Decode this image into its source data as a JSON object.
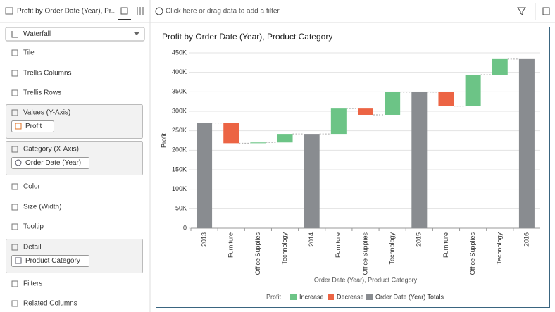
{
  "tab_title": "Profit by Order Date (Year), Pr...",
  "filter_placeholder": "Click here or drag data to add a filter",
  "sidebar": {
    "chart_type": "Waterfall",
    "sections": [
      {
        "label": "Tile"
      },
      {
        "label": "Trellis Columns"
      },
      {
        "label": "Trellis Rows"
      },
      {
        "label": "Values (Y-Axis)",
        "pill": "Profit"
      },
      {
        "label": "Category (X-Axis)",
        "pill": "Order Date (Year)"
      },
      {
        "label": "Color"
      },
      {
        "label": "Size (Width)"
      },
      {
        "label": "Tooltip"
      },
      {
        "label": "Detail",
        "pill": "Product Category"
      },
      {
        "label": "Filters"
      },
      {
        "label": "Related Columns"
      }
    ]
  },
  "chart_data": {
    "type": "waterfall",
    "title": "Profit by Order Date (Year), Product Category",
    "y_label": "Profit",
    "x_label": "Order Date (Year), Product Category",
    "categories": [
      "2013",
      "Furniture",
      "Office Supplies",
      "Technology",
      "2014",
      "Furniture",
      "Office Supplies",
      "Technology",
      "2015",
      "Furniture",
      "Office Supplies",
      "Technology",
      "2016"
    ],
    "values": [
      270000,
      -52000,
      2000,
      22000,
      242000,
      65000,
      -16000,
      58000,
      349000,
      -36000,
      81000,
      40000,
      434000
    ],
    "is_total": [
      true,
      false,
      false,
      false,
      true,
      false,
      false,
      false,
      true,
      false,
      false,
      false,
      true
    ],
    "ylim": [
      0,
      450000
    ],
    "yticks": [
      0,
      {
        "value": 50000,
        "label": "50K"
      },
      {
        "value": 100000,
        "label": "100K"
      },
      {
        "value": 150000,
        "label": "150K"
      },
      {
        "value": 200000,
        "label": "200K"
      },
      {
        "value": 250000,
        "label": "250K"
      },
      {
        "value": 300000,
        "label": "300K"
      },
      {
        "value": 350000,
        "label": "350K"
      },
      {
        "value": 400000,
        "label": "400K"
      },
      {
        "value": 450000,
        "label": "450K"
      }
    ],
    "grid": true,
    "legend": {
      "title": "Profit",
      "items": [
        {
          "name": "Increase",
          "color": "#6cc486"
        },
        {
          "name": "Decrease",
          "color": "#ec6444"
        },
        {
          "name": "Order Date (Year) Totals",
          "color": "#898c90"
        }
      ]
    }
  }
}
